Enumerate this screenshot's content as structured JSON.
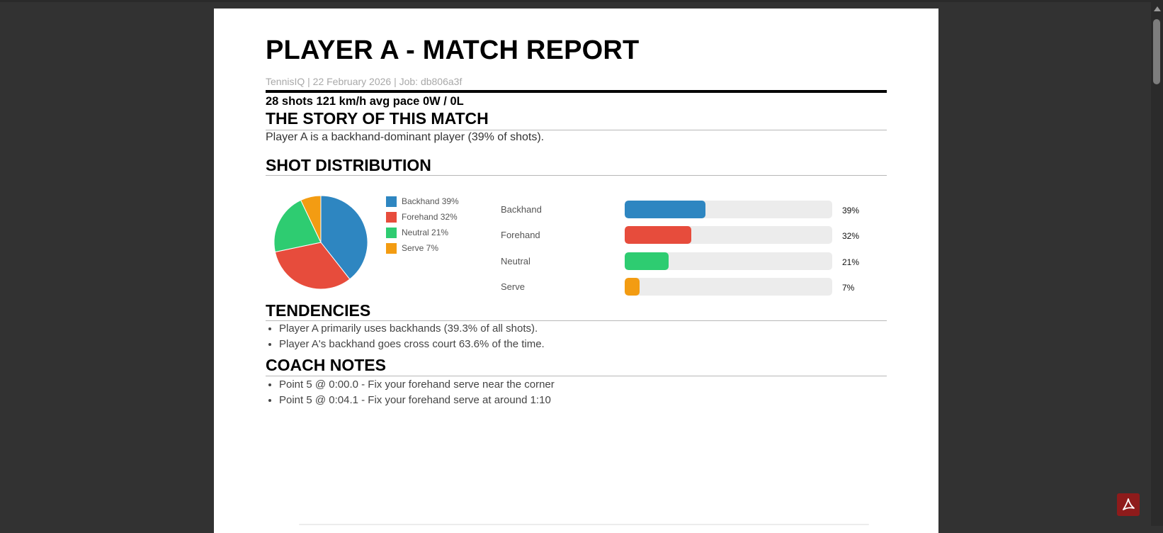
{
  "report": {
    "title": "PLAYER A - MATCH REPORT",
    "meta": "TennisIQ | 22 February 2026 | Job: db806a3f",
    "summary": "28 shots 121 km/h avg pace 0W / 0L"
  },
  "story": {
    "heading": "THE STORY OF THIS MATCH",
    "text": "Player A is a backhand-dominant player (39% of shots)."
  },
  "distribution": {
    "heading": "SHOT DISTRIBUTION"
  },
  "chart_data": {
    "type": "pie",
    "categories": [
      "Backhand",
      "Forehand",
      "Neutral",
      "Serve"
    ],
    "values": [
      39,
      32,
      21,
      7
    ],
    "unit": "%",
    "colors": [
      "#2e86c1",
      "#e74c3c",
      "#2ecc71",
      "#f39c12"
    ],
    "legend_labels": [
      "Backhand 39%",
      "Forehand 32%",
      "Neutral 21%",
      "Serve 7%"
    ],
    "value_labels": [
      "39%",
      "32%",
      "21%",
      "7%"
    ],
    "legend": "right"
  },
  "tendencies": {
    "heading": "TENDENCIES",
    "items": [
      "Player A primarily uses backhands (39.3% of all shots).",
      "Player A's backhand goes cross court 63.6% of the time."
    ]
  },
  "coach_notes": {
    "heading": "COACH NOTES",
    "items": [
      "Point 5 @ 0:00.0 - Fix your forehand serve near the corner",
      "Point 5 @ 0:04.1 - Fix your forehand serve at around 1:10"
    ]
  },
  "viewer": {
    "background": "#323232",
    "icons": [
      "scroll-up-icon",
      "acrobat-icon"
    ]
  }
}
